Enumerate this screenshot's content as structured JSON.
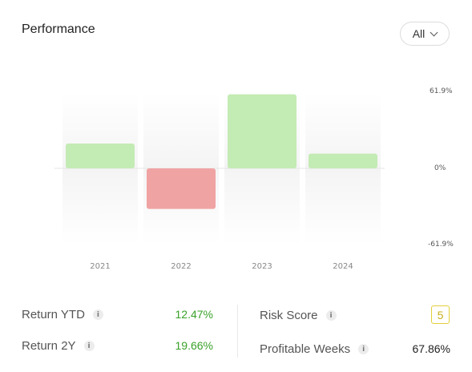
{
  "header": {
    "title": "Performance",
    "range_selector": "All"
  },
  "chart_data": {
    "type": "bar",
    "categories": [
      "2021",
      "2022",
      "2023",
      "2024"
    ],
    "values": [
      20.2,
      -33.0,
      60.2,
      12.0
    ],
    "ylim": [
      -61.9,
      61.9
    ],
    "y_ticks": [
      "61.9%",
      "0%",
      "-61.9%"
    ],
    "positive_color": "#c3ebb4",
    "negative_color": "#f0a3a3"
  },
  "metrics": {
    "return_ytd": {
      "label": "Return YTD",
      "value": "12.47%"
    },
    "return_2y": {
      "label": "Return 2Y",
      "value": "19.66%"
    },
    "risk_score": {
      "label": "Risk Score",
      "value": "5"
    },
    "profitable_weeks": {
      "label": "Profitable Weeks",
      "value": "67.86%"
    }
  },
  "icons": {
    "info": "i",
    "dropdown": "chevron-down-icon"
  }
}
